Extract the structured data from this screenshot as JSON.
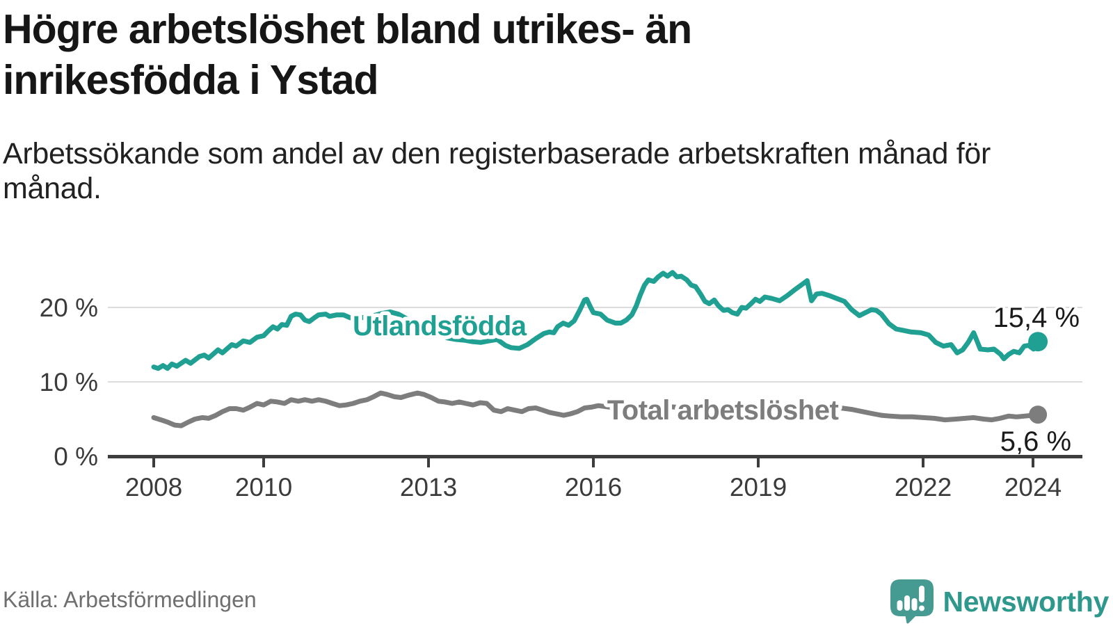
{
  "header": {
    "title": "Högre arbetslöshet bland utrikes- än inrikesfödda i Ystad",
    "subtitle": "Arbetssökande som andel av den registerbaserade arbetskraften månad för månad."
  },
  "footer": {
    "source": "Källa: Arbetsförmedlingen",
    "logo_text": "Newsworthy",
    "logo_color": "#459a92"
  },
  "chart_data": {
    "type": "line",
    "title": "Högre arbetslöshet bland utrikes- än inrikesfödda i Ystad",
    "xlabel": "",
    "ylabel": "",
    "grid": "horizontal",
    "legend_position": "inline-labels",
    "x_axis": {
      "ticks": [
        2008,
        2010,
        2013,
        2016,
        2019,
        2022,
        2024
      ],
      "range": [
        2007.2,
        2024.9
      ]
    },
    "y_axis": {
      "ticks": [
        {
          "value": 0,
          "label": "0 %"
        },
        {
          "value": 10,
          "label": "10 %"
        },
        {
          "value": 20,
          "label": "20 %"
        }
      ],
      "range": [
        0,
        26
      ]
    },
    "series": [
      {
        "key": "total",
        "name": "Total arbetslöshet",
        "color": "#7d7d7d",
        "end_value": 5.6,
        "end_label": "5,6 %",
        "label": {
          "text": "Total arbetslöshet",
          "year": 2016.25,
          "pct": 4.95
        },
        "points": [
          [
            2008.0,
            5.2
          ],
          [
            2008.13,
            4.9
          ],
          [
            2008.25,
            4.6
          ],
          [
            2008.38,
            4.2
          ],
          [
            2008.5,
            4.1
          ],
          [
            2008.63,
            4.6
          ],
          [
            2008.75,
            5.0
          ],
          [
            2008.88,
            5.2
          ],
          [
            2009.0,
            5.1
          ],
          [
            2009.13,
            5.5
          ],
          [
            2009.25,
            6.0
          ],
          [
            2009.38,
            6.4
          ],
          [
            2009.5,
            6.4
          ],
          [
            2009.63,
            6.2
          ],
          [
            2009.75,
            6.6
          ],
          [
            2009.88,
            7.1
          ],
          [
            2010.0,
            6.9
          ],
          [
            2010.13,
            7.4
          ],
          [
            2010.25,
            7.3
          ],
          [
            2010.38,
            7.1
          ],
          [
            2010.5,
            7.6
          ],
          [
            2010.63,
            7.4
          ],
          [
            2010.75,
            7.6
          ],
          [
            2010.88,
            7.4
          ],
          [
            2011.0,
            7.6
          ],
          [
            2011.13,
            7.4
          ],
          [
            2011.25,
            7.1
          ],
          [
            2011.38,
            6.8
          ],
          [
            2011.5,
            6.9
          ],
          [
            2011.63,
            7.1
          ],
          [
            2011.75,
            7.4
          ],
          [
            2011.88,
            7.6
          ],
          [
            2012.0,
            8.0
          ],
          [
            2012.13,
            8.5
          ],
          [
            2012.25,
            8.3
          ],
          [
            2012.38,
            8.0
          ],
          [
            2012.5,
            7.9
          ],
          [
            2012.63,
            8.2
          ],
          [
            2012.8,
            8.5
          ],
          [
            2012.92,
            8.3
          ],
          [
            2013.05,
            7.9
          ],
          [
            2013.18,
            7.4
          ],
          [
            2013.3,
            7.3
          ],
          [
            2013.43,
            7.1
          ],
          [
            2013.56,
            7.3
          ],
          [
            2013.68,
            7.1
          ],
          [
            2013.81,
            6.9
          ],
          [
            2013.94,
            7.2
          ],
          [
            2014.06,
            7.1
          ],
          [
            2014.19,
            6.2
          ],
          [
            2014.32,
            6.0
          ],
          [
            2014.44,
            6.4
          ],
          [
            2014.57,
            6.2
          ],
          [
            2014.7,
            6.0
          ],
          [
            2014.82,
            6.4
          ],
          [
            2014.95,
            6.5
          ],
          [
            2015.08,
            6.2
          ],
          [
            2015.2,
            5.9
          ],
          [
            2015.33,
            5.7
          ],
          [
            2015.46,
            5.5
          ],
          [
            2015.58,
            5.7
          ],
          [
            2015.71,
            6.0
          ],
          [
            2015.84,
            6.5
          ],
          [
            2015.96,
            6.6
          ],
          [
            2016.09,
            6.8
          ],
          [
            2016.3,
            6.6
          ],
          [
            2016.5,
            6.5
          ],
          [
            2016.7,
            6.6
          ],
          [
            2016.9,
            6.8
          ],
          [
            2017.1,
            6.9
          ],
          [
            2017.3,
            6.7
          ],
          [
            2017.5,
            6.6
          ],
          [
            2017.7,
            6.5
          ],
          [
            2017.9,
            6.4
          ],
          [
            2018.1,
            6.3
          ],
          [
            2018.3,
            6.4
          ],
          [
            2018.5,
            6.3
          ],
          [
            2018.7,
            6.2
          ],
          [
            2018.9,
            6.4
          ],
          [
            2019.1,
            6.5
          ],
          [
            2019.3,
            6.4
          ],
          [
            2019.5,
            6.6
          ],
          [
            2019.7,
            6.5
          ],
          [
            2019.9,
            6.4
          ],
          [
            2020.1,
            6.6
          ],
          [
            2020.3,
            6.7
          ],
          [
            2020.5,
            6.5
          ],
          [
            2020.7,
            6.3
          ],
          [
            2020.9,
            6.0
          ],
          [
            2021.1,
            5.7
          ],
          [
            2021.24,
            5.5
          ],
          [
            2021.4,
            5.4
          ],
          [
            2021.6,
            5.3
          ],
          [
            2021.8,
            5.3
          ],
          [
            2022.0,
            5.2
          ],
          [
            2022.2,
            5.1
          ],
          [
            2022.4,
            4.9
          ],
          [
            2022.6,
            5.0
          ],
          [
            2022.77,
            5.1
          ],
          [
            2022.92,
            5.2
          ],
          [
            2023.1,
            5.0
          ],
          [
            2023.25,
            4.9
          ],
          [
            2023.4,
            5.1
          ],
          [
            2023.56,
            5.4
          ],
          [
            2023.7,
            5.3
          ],
          [
            2023.85,
            5.4
          ],
          [
            2024.0,
            5.5
          ],
          [
            2024.09,
            5.6
          ]
        ]
      },
      {
        "key": "utlandsfodda",
        "name": "Utlandsfödda",
        "color": "#1fa092",
        "end_value": 15.4,
        "end_label": "15,4 %",
        "label": {
          "text": "Utlandsfödda",
          "year": 2011.62,
          "pct": 16.26
        },
        "points": [
          [
            2008.0,
            12.0
          ],
          [
            2008.08,
            11.8
          ],
          [
            2008.17,
            12.2
          ],
          [
            2008.25,
            11.8
          ],
          [
            2008.33,
            12.4
          ],
          [
            2008.42,
            12.1
          ],
          [
            2008.58,
            12.9
          ],
          [
            2008.67,
            12.5
          ],
          [
            2008.83,
            13.4
          ],
          [
            2008.92,
            13.6
          ],
          [
            2009.0,
            13.2
          ],
          [
            2009.17,
            14.3
          ],
          [
            2009.25,
            13.9
          ],
          [
            2009.42,
            15.0
          ],
          [
            2009.5,
            14.8
          ],
          [
            2009.63,
            15.5
          ],
          [
            2009.75,
            15.3
          ],
          [
            2009.88,
            16.0
          ],
          [
            2010.0,
            16.2
          ],
          [
            2010.08,
            16.8
          ],
          [
            2010.17,
            17.4
          ],
          [
            2010.25,
            17.1
          ],
          [
            2010.33,
            17.7
          ],
          [
            2010.42,
            17.6
          ],
          [
            2010.5,
            18.8
          ],
          [
            2010.58,
            19.1
          ],
          [
            2010.67,
            19.0
          ],
          [
            2010.75,
            18.3
          ],
          [
            2010.83,
            18.1
          ],
          [
            2010.92,
            18.6
          ],
          [
            2011.0,
            19.0
          ],
          [
            2011.13,
            19.1
          ],
          [
            2011.2,
            18.8
          ],
          [
            2011.33,
            19.0
          ],
          [
            2011.45,
            19.0
          ],
          [
            2011.58,
            18.6
          ],
          [
            2011.7,
            18.5
          ],
          [
            2011.85,
            18.7
          ],
          [
            2012.0,
            18.9
          ],
          [
            2012.15,
            19.2
          ],
          [
            2012.3,
            19.4
          ],
          [
            2012.45,
            19.1
          ],
          [
            2012.6,
            18.5
          ],
          [
            2012.75,
            18.0
          ],
          [
            2012.9,
            17.5
          ],
          [
            2013.05,
            17.0
          ],
          [
            2013.2,
            16.4
          ],
          [
            2013.35,
            15.9
          ],
          [
            2013.5,
            15.7
          ],
          [
            2013.65,
            15.6
          ],
          [
            2013.8,
            15.4
          ],
          [
            2013.95,
            15.3
          ],
          [
            2014.1,
            15.5
          ],
          [
            2014.25,
            15.7
          ],
          [
            2014.4,
            14.9
          ],
          [
            2014.5,
            14.6
          ],
          [
            2014.65,
            14.5
          ],
          [
            2014.8,
            15.0
          ],
          [
            2014.95,
            15.8
          ],
          [
            2015.1,
            16.5
          ],
          [
            2015.2,
            16.7
          ],
          [
            2015.28,
            16.6
          ],
          [
            2015.35,
            17.4
          ],
          [
            2015.45,
            17.9
          ],
          [
            2015.55,
            17.6
          ],
          [
            2015.65,
            18.2
          ],
          [
            2015.75,
            19.6
          ],
          [
            2015.84,
            21.0
          ],
          [
            2015.88,
            21.1
          ],
          [
            2015.95,
            20.0
          ],
          [
            2016.0,
            19.3
          ],
          [
            2016.13,
            19.1
          ],
          [
            2016.25,
            18.3
          ],
          [
            2016.4,
            17.9
          ],
          [
            2016.5,
            17.9
          ],
          [
            2016.6,
            18.3
          ],
          [
            2016.7,
            19.0
          ],
          [
            2016.78,
            20.2
          ],
          [
            2016.85,
            21.6
          ],
          [
            2016.93,
            23.0
          ],
          [
            2017.0,
            23.7
          ],
          [
            2017.1,
            23.5
          ],
          [
            2017.18,
            24.1
          ],
          [
            2017.27,
            24.6
          ],
          [
            2017.35,
            24.2
          ],
          [
            2017.44,
            24.7
          ],
          [
            2017.52,
            24.1
          ],
          [
            2017.6,
            24.2
          ],
          [
            2017.7,
            23.7
          ],
          [
            2017.78,
            23.0
          ],
          [
            2017.86,
            22.8
          ],
          [
            2017.95,
            21.8
          ],
          [
            2018.03,
            20.8
          ],
          [
            2018.11,
            20.5
          ],
          [
            2018.2,
            21.0
          ],
          [
            2018.28,
            20.2
          ],
          [
            2018.37,
            19.6
          ],
          [
            2018.45,
            19.7
          ],
          [
            2018.53,
            19.3
          ],
          [
            2018.62,
            19.1
          ],
          [
            2018.7,
            20.0
          ],
          [
            2018.78,
            19.9
          ],
          [
            2018.87,
            20.5
          ],
          [
            2018.95,
            21.1
          ],
          [
            2019.03,
            20.8
          ],
          [
            2019.12,
            21.4
          ],
          [
            2019.25,
            21.2
          ],
          [
            2019.39,
            20.9
          ],
          [
            2019.53,
            21.6
          ],
          [
            2019.67,
            22.4
          ],
          [
            2019.8,
            23.1
          ],
          [
            2019.89,
            23.6
          ],
          [
            2019.97,
            20.9
          ],
          [
            2020.06,
            21.8
          ],
          [
            2020.16,
            21.9
          ],
          [
            2020.29,
            21.6
          ],
          [
            2020.43,
            21.2
          ],
          [
            2020.57,
            20.8
          ],
          [
            2020.7,
            19.7
          ],
          [
            2020.84,
            18.9
          ],
          [
            2020.95,
            19.3
          ],
          [
            2021.06,
            19.7
          ],
          [
            2021.15,
            19.6
          ],
          [
            2021.24,
            19.1
          ],
          [
            2021.38,
            17.8
          ],
          [
            2021.51,
            17.1
          ],
          [
            2021.65,
            16.9
          ],
          [
            2021.78,
            16.7
          ],
          [
            2021.96,
            16.6
          ],
          [
            2022.1,
            16.3
          ],
          [
            2022.23,
            15.3
          ],
          [
            2022.37,
            14.8
          ],
          [
            2022.51,
            15.0
          ],
          [
            2022.62,
            13.9
          ],
          [
            2022.72,
            14.3
          ],
          [
            2022.82,
            15.3
          ],
          [
            2022.92,
            16.6
          ],
          [
            2023.04,
            14.4
          ],
          [
            2023.18,
            14.3
          ],
          [
            2023.29,
            14.4
          ],
          [
            2023.41,
            13.7
          ],
          [
            2023.47,
            13.1
          ],
          [
            2023.56,
            13.7
          ],
          [
            2023.65,
            14.1
          ],
          [
            2023.75,
            13.9
          ],
          [
            2023.84,
            14.8
          ],
          [
            2023.92,
            14.9
          ],
          [
            2024.01,
            14.4
          ],
          [
            2024.09,
            15.4
          ]
        ]
      }
    ]
  }
}
